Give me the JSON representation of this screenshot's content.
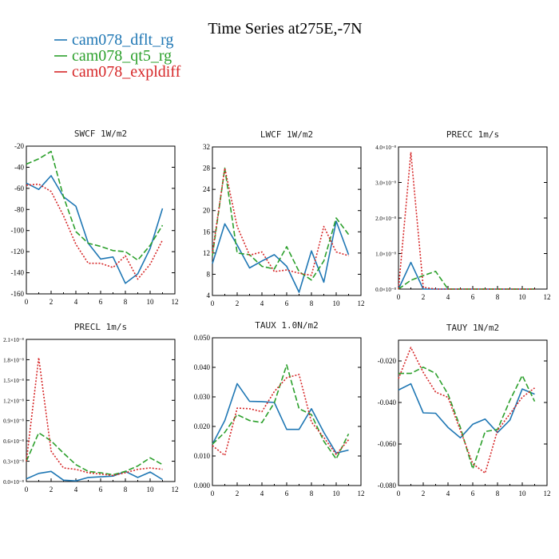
{
  "title": "Time Series at275E,-7N",
  "legend": [
    {
      "name": "cam078_dflt_rg",
      "color": "#1f77b4"
    },
    {
      "name": "cam078_qt5_rg",
      "color": "#2ca02c"
    },
    {
      "name": "cam078_expldiff",
      "color": "#d62728"
    }
  ],
  "chart_data": [
    {
      "type": "line",
      "title": "SWCF  1W/m2",
      "x": [
        0,
        1,
        2,
        3,
        4,
        5,
        6,
        7,
        8,
        9,
        10,
        11
      ],
      "xlim": [
        0,
        12
      ],
      "ylim": [
        -160,
        -20
      ],
      "xticks": [
        "0",
        "2",
        "4",
        "6",
        "8",
        "10",
        "12"
      ],
      "yticks": [
        "-20",
        "-40",
        "-60",
        "-80",
        "-100",
        "-120",
        "-140",
        "-160"
      ],
      "series": [
        {
          "name": "cam078_dflt_rg",
          "values": [
            -55,
            -61,
            -48,
            -68,
            -77,
            -112,
            -127,
            -125,
            -150,
            -141,
            -117,
            -79
          ]
        },
        {
          "name": "cam078_qt5_rg",
          "values": [
            -37,
            -32,
            -25,
            -68,
            -101,
            -112,
            -115,
            -119,
            -120,
            -128,
            -114,
            -95
          ]
        },
        {
          "name": "cam078_expldiff",
          "values": [
            -57,
            -56,
            -63,
            -86,
            -113,
            -131,
            -131,
            -135,
            -124,
            -146,
            -132,
            -109
          ]
        }
      ]
    },
    {
      "type": "line",
      "title": "LWCF  1W/m2",
      "x": [
        0,
        1,
        2,
        3,
        4,
        5,
        6,
        7,
        8,
        9,
        10,
        11
      ],
      "xlim": [
        0,
        12
      ],
      "ylim": [
        4,
        32
      ],
      "xticks": [
        "0",
        "2",
        "4",
        "6",
        "8",
        "10",
        "12"
      ],
      "yticks": [
        "4",
        "8",
        "12",
        "16",
        "20",
        "24",
        "28",
        "32"
      ],
      "series": [
        {
          "name": "cam078_dflt_rg",
          "values": [
            10,
            17.5,
            13.5,
            9.2,
            10.5,
            11.7,
            9.5,
            4.6,
            12.4,
            6.5,
            18,
            11.7
          ]
        },
        {
          "name": "cam078_qt5_rg",
          "values": [
            11.5,
            28,
            12,
            11.7,
            9.5,
            9,
            13.2,
            8.5,
            6.9,
            10.5,
            18.6,
            15.5
          ]
        },
        {
          "name": "cam078_expldiff",
          "values": [
            12,
            28,
            17,
            11.6,
            12.2,
            8.5,
            8.8,
            8.2,
            7.8,
            17,
            12.2,
            11.5
          ]
        }
      ]
    },
    {
      "type": "line",
      "title": "PRECC  1m/s",
      "x": [
        0,
        1,
        2,
        3,
        4,
        5,
        6,
        7,
        8,
        9,
        10,
        11
      ],
      "xlim": [
        0,
        12
      ],
      "ylim": [
        0,
        4e-08
      ],
      "xticks": [
        "0",
        "2",
        "4",
        "6",
        "8",
        "10",
        "12"
      ],
      "yticks": [
        "0.0×10⁻⁸",
        "1.0×10⁻⁸",
        "2.0×10⁻⁸",
        "3.0×10⁻⁸",
        "4.0×10⁻⁸"
      ],
      "series": [
        {
          "name": "cam078_dflt_rg",
          "values": [
            0,
            7.5e-09,
            0,
            0,
            0,
            0,
            0,
            0,
            0,
            0,
            0,
            0
          ]
        },
        {
          "name": "cam078_qt5_rg",
          "values": [
            0,
            2.5e-09,
            3.8e-09,
            5e-09,
            0,
            0,
            0,
            0,
            0,
            0,
            0,
            0
          ]
        },
        {
          "name": "cam078_expldiff",
          "values": [
            0,
            3.85e-08,
            5e-10,
            0,
            0,
            0,
            0,
            0,
            0,
            0,
            0,
            0
          ]
        }
      ]
    },
    {
      "type": "line",
      "title": "PRECL  1m/s",
      "x": [
        0,
        1,
        2,
        3,
        4,
        5,
        6,
        7,
        8,
        9,
        10,
        11
      ],
      "xlim": [
        0,
        12
      ],
      "ylim": [
        0,
        2.1e-08
      ],
      "xticks": [
        "0",
        "2",
        "4",
        "6",
        "8",
        "10",
        "12"
      ],
      "yticks": [
        "0.0×10⁻⁸",
        "0.3×10⁻⁸",
        "0.6×10⁻⁸",
        "0.9×10⁻⁸",
        "1.2×10⁻⁸",
        "1.5×10⁻⁸",
        "1.8×10⁻⁸",
        "2.1×10⁻⁸"
      ],
      "series": [
        {
          "name": "cam078_dflt_rg",
          "values": [
            4e-10,
            1.2e-09,
            1.5e-09,
            2e-10,
            1e-10,
            6e-10,
            7e-10,
            8e-10,
            1.5e-09,
            6e-10,
            1.4e-09,
            3e-10
          ]
        },
        {
          "name": "cam078_qt5_rg",
          "values": [
            3e-09,
            7.2e-09,
            6e-09,
            4.2e-09,
            2.5e-09,
            1.5e-09,
            1.3e-09,
            1e-09,
            1.5e-09,
            2.3e-09,
            3.5e-09,
            2.5e-09
          ]
        },
        {
          "name": "cam078_expldiff",
          "values": [
            3e-09,
            1.83e-08,
            4.5e-09,
            2e-09,
            1.8e-09,
            1.3e-09,
            1.1e-09,
            9e-10,
            1.3e-09,
            1.8e-09,
            2e-09,
            1.8e-09
          ]
        }
      ]
    },
    {
      "type": "line",
      "title": "TAUX  1.0N/m2",
      "x": [
        0,
        1,
        2,
        3,
        4,
        5,
        6,
        7,
        8,
        9,
        10,
        11
      ],
      "xlim": [
        0,
        12
      ],
      "ylim": [
        0,
        0.05
      ],
      "xticks": [
        "0",
        "2",
        "4",
        "6",
        "8",
        "10",
        "12"
      ],
      "yticks": [
        "0.000",
        "0.010",
        "0.020",
        "0.030",
        "0.040",
        "0.050"
      ],
      "series": [
        {
          "name": "cam078_dflt_rg",
          "values": [
            0.014,
            0.022,
            0.0345,
            0.0285,
            0.0284,
            0.0281,
            0.019,
            0.019,
            0.026,
            0.018,
            0.011,
            0.012
          ]
        },
        {
          "name": "cam078_qt5_rg",
          "values": [
            0.014,
            0.018,
            0.024,
            0.022,
            0.0213,
            0.028,
            0.0408,
            0.026,
            0.024,
            0.015,
            0.009,
            0.0175
          ]
        },
        {
          "name": "cam078_expldiff",
          "values": [
            0.0135,
            0.0102,
            0.0262,
            0.026,
            0.025,
            0.0318,
            0.0365,
            0.0376,
            0.0215,
            0.0163,
            0.0105,
            0.0155
          ]
        }
      ]
    },
    {
      "type": "line",
      "title": "TAUY  1N/m2",
      "x": [
        0,
        1,
        2,
        3,
        4,
        5,
        6,
        7,
        8,
        9,
        10,
        11
      ],
      "xlim": [
        0,
        12
      ],
      "ylim": [
        -0.08,
        -0.01
      ],
      "xticks": [
        "0",
        "2",
        "4",
        "6",
        "8",
        "10",
        "12"
      ],
      "yticks": [
        "-0.020",
        "-0.040",
        "-0.060",
        "-0.080"
      ],
      "series": [
        {
          "name": "cam078_dflt_rg",
          "values": [
            -0.034,
            -0.031,
            -0.045,
            -0.0452,
            -0.052,
            -0.057,
            -0.0505,
            -0.048,
            -0.0545,
            -0.0485,
            -0.0335,
            -0.036
          ]
        },
        {
          "name": "cam078_qt5_rg",
          "values": [
            -0.026,
            -0.026,
            -0.023,
            -0.026,
            -0.036,
            -0.052,
            -0.072,
            -0.054,
            -0.053,
            -0.039,
            -0.027,
            -0.0395
          ]
        },
        {
          "name": "cam078_expldiff",
          "values": [
            -0.0285,
            -0.0135,
            -0.0255,
            -0.035,
            -0.0375,
            -0.0535,
            -0.0695,
            -0.074,
            -0.0535,
            -0.0455,
            -0.0375,
            -0.033
          ]
        }
      ]
    }
  ]
}
